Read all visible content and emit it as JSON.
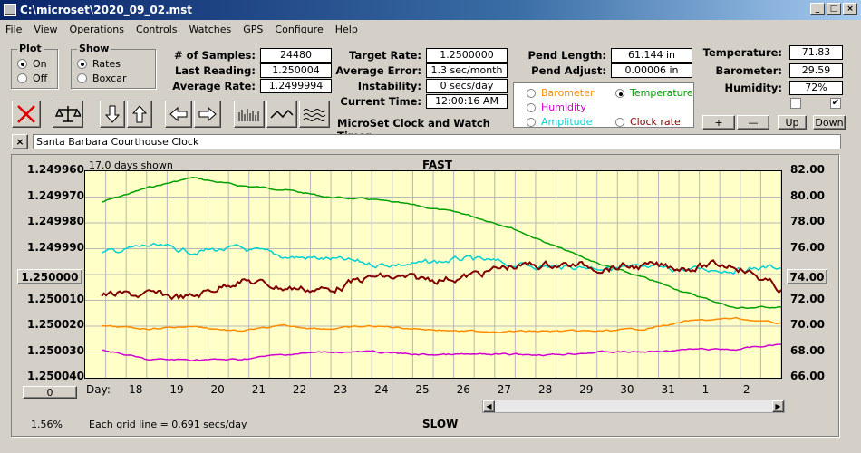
{
  "window": {
    "title": "C:\\microset\\2020_09_02.mst"
  },
  "menu": [
    "File",
    "View",
    "Operations",
    "Controls",
    "Watches",
    "GPS",
    "Configure",
    "Help"
  ],
  "plot_group": {
    "caption": "Plot",
    "on": "On",
    "off": "Off",
    "selected": "On"
  },
  "show_group": {
    "caption": "Show",
    "rates": "Rates",
    "boxcar": "Boxcar",
    "selected": "Rates"
  },
  "stats": {
    "samples_label": "# of Samples:",
    "samples": "24480",
    "last_label": "Last Reading:",
    "last": "1.250004",
    "avg_label": "Average Rate:",
    "avg": "1.2499994",
    "target_label": "Target Rate:",
    "target": "1.2500000",
    "avgerr_label": "Average Error:",
    "avgerr": "1.3 sec/month",
    "instab_label": "Instability:",
    "instab": "0 secs/day",
    "time_label": "Current Time:",
    "time": "12:00:16 AM",
    "pendlen_label": "Pend Length:",
    "pendlen": "61.144 in",
    "pendadj_label": "Pend Adjust:",
    "pendadj": "0.00006 in",
    "temp_label": "Temperature:",
    "temp": "71.83",
    "baro_label": "Barometer:",
    "baro": "29.59",
    "hum_label": "Humidity:",
    "hum": "72%"
  },
  "app_name": "MicroSet Clock and Watch Timer",
  "sources": {
    "barometer": "Barometer",
    "temperature": "Temperature",
    "humidity": "Humidity",
    "amplitude": "Amplitude",
    "clockrate": "Clock rate",
    "selected": "Temperature",
    "colors": {
      "barometer": "#ff8c00",
      "temperature": "#00a000",
      "humidity": "#d000d0",
      "amplitude": "#00d0d0",
      "clockrate": "#800000"
    }
  },
  "small_buttons": {
    "plus": "+",
    "minus": "—",
    "up": "Up",
    "down": "Down"
  },
  "watch_name": "Santa Barbara Courthouse Clock",
  "chart": {
    "days_shown": "17.0 days shown",
    "fast": "FAST",
    "slow": "SLOW",
    "grid_note": "Each grid line = 0.691 secs/day",
    "zoom_pct": "1.56%",
    "left_ticks": [
      "1.249960",
      "1.249970",
      "1.249980",
      "1.249990",
      "1.250000",
      "1.250010",
      "1.250020",
      "1.250030",
      "1.250040"
    ],
    "left_center_button": "1.250000",
    "left_bottom_button": "0",
    "right_ticks": [
      "82.00",
      "80.00",
      "78.00",
      "76.00",
      "74.00",
      "72.00",
      "70.00",
      "68.00",
      "66.00"
    ],
    "right_center_button": "74.00",
    "day_label": "Day:",
    "days": [
      "18",
      "19",
      "20",
      "21",
      "22",
      "23",
      "24",
      "25",
      "26",
      "27",
      "28",
      "29",
      "30",
      "31",
      "1",
      "2"
    ]
  },
  "chart_data": {
    "type": "line",
    "x": [
      "18",
      "19",
      "20",
      "21",
      "22",
      "23",
      "24",
      "25",
      "26",
      "27",
      "28",
      "29",
      "30",
      "31",
      "1",
      "2"
    ],
    "left_ylim": [
      1.25004,
      1.24996
    ],
    "right_ylim": [
      66,
      82
    ],
    "series": [
      {
        "name": "Temperature",
        "color": "#00a000",
        "axis": "right",
        "values": [
          79.6,
          80.7,
          81.5,
          80.9,
          80.6,
          80.0,
          79.8,
          79.3,
          78.7,
          77.7,
          76.2,
          74.8,
          73.7,
          72.5,
          71.4,
          71.5
        ]
      },
      {
        "name": "Amplitude",
        "color": "#00d0d0",
        "axis": "left",
        "values": [
          1.249992,
          1.249989,
          1.249991,
          1.24999,
          1.249993,
          1.249994,
          1.249996,
          1.249996,
          1.249994,
          1.249996,
          1.249997,
          1.249997,
          1.249998,
          1.249998,
          1.249998,
          1.249997
        ]
      },
      {
        "name": "Clock rate",
        "color": "#800000",
        "axis": "left",
        "values": [
          1.250008,
          1.250008,
          1.250009,
          1.250002,
          1.250005,
          1.250006,
          1.250001,
          1.250002,
          1.250001,
          1.249997,
          1.249996,
          1.249997,
          1.249997,
          1.249997,
          1.249996,
          1.250006
        ]
      },
      {
        "name": "Barometer",
        "color": "#ff8c00",
        "axis": "left",
        "values": [
          1.25002,
          1.250021,
          1.25002,
          1.250022,
          1.25002,
          1.250021,
          1.25002,
          1.250021,
          1.250022,
          1.250022,
          1.250022,
          1.250022,
          1.250021,
          1.250018,
          1.250017,
          1.250019
        ]
      },
      {
        "name": "Humidity",
        "color": "#d000d0",
        "axis": "left",
        "values": [
          1.250029,
          1.250033,
          1.250033,
          1.250033,
          1.250031,
          1.25003,
          1.25003,
          1.250031,
          1.250031,
          1.250031,
          1.250031,
          1.25003,
          1.25003,
          1.250029,
          1.250029,
          1.250027
        ]
      }
    ]
  }
}
